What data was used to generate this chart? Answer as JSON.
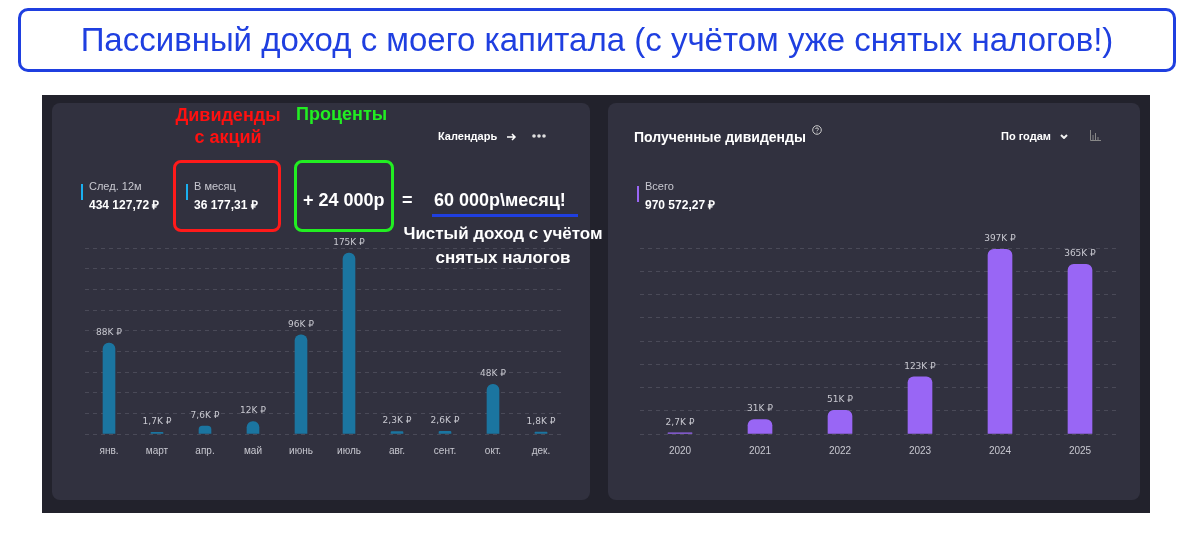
{
  "chart_data": [
    {
      "type": "bar",
      "title": "Пассивный доход с моего капитала (с учётом уже снятых налогов!)",
      "categories": [
        "янв.",
        "март",
        "апр.",
        "май",
        "июнь",
        "июль",
        "авг.",
        "сент.",
        "окт.",
        "дек."
      ],
      "values": [
        88,
        1.7,
        7.6,
        12,
        96,
        175,
        2.3,
        2.6,
        48,
        1.8
      ],
      "value_labels": [
        "88K ₽",
        "1,7K ₽",
        "7,6K ₽",
        "12K ₽",
        "96K ₽",
        "175K ₽",
        "2,3K ₽",
        "2,6K ₽",
        "48K ₽",
        "1,8K ₽"
      ],
      "color": "#1b75a0",
      "grid": "y",
      "legend": false,
      "tick_labels": "x",
      "annotations": [
        "Дивиденды с акций",
        "Проценты",
        "Календарь",
        "След. 12м",
        "434 127,72 ₽",
        "В месяц",
        "36 177,31 ₽",
        "+ 24 000р",
        "=",
        "60 000р\\месяц!",
        "Чистый доход с учётом снятых налогов"
      ]
    },
    {
      "type": "bar",
      "title": "Полученные дивиденды",
      "categories": [
        "2020",
        "2021",
        "2022",
        "2023",
        "2024",
        "2025"
      ],
      "values": [
        2.7,
        31,
        51,
        123,
        397,
        365
      ],
      "value_labels": [
        "2,7K ₽",
        "31K ₽",
        "51K ₽",
        "123K ₽",
        "397K ₽",
        "365K ₽"
      ],
      "color": "#9966f5",
      "grid": "y",
      "legend": false,
      "tick_labels": "x",
      "annotations": [
        "По годам",
        "Всего",
        "970 572,27 ₽"
      ]
    }
  ]
}
